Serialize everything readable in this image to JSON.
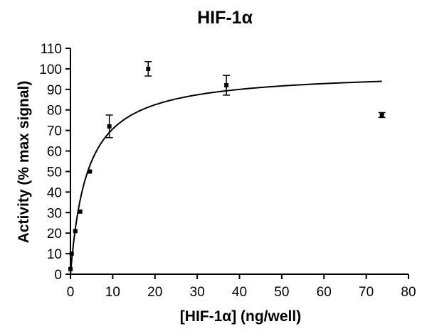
{
  "chart_data": {
    "type": "scatter",
    "title": "HIF-1α",
    "xlabel": "[HIF-1α] (ng/well)",
    "ylabel": "Activity (% max signal)",
    "xlim": [
      0,
      80
    ],
    "ylim": [
      0,
      110
    ],
    "x_ticks": [
      0,
      10,
      20,
      30,
      40,
      50,
      60,
      70,
      80
    ],
    "y_ticks": [
      0,
      10,
      20,
      30,
      40,
      50,
      60,
      70,
      80,
      90,
      100,
      110
    ],
    "grid": false,
    "legend": "none",
    "points": [
      {
        "x": 0,
        "y": 2.5,
        "err": 0.5
      },
      {
        "x": 0.29,
        "y": 10,
        "err": 0.7
      },
      {
        "x": 1.15,
        "y": 21,
        "err": 0.8
      },
      {
        "x": 2.3,
        "y": 30.5,
        "err": 0.8
      },
      {
        "x": 4.6,
        "y": 50,
        "err": 0.8
      },
      {
        "x": 9.2,
        "y": 72,
        "err": 5.5
      },
      {
        "x": 18.4,
        "y": 100,
        "err": 3.5
      },
      {
        "x": 36.9,
        "y": 92,
        "err": 4.8
      },
      {
        "x": 73.7,
        "y": 77.5,
        "err": 1.2
      }
    ],
    "fit_curve": {
      "model": "saturation",
      "vmax": 99,
      "k": 4,
      "x_range": [
        0,
        73.7
      ]
    },
    "marker_color": "#000000",
    "line_color": "#000000"
  }
}
